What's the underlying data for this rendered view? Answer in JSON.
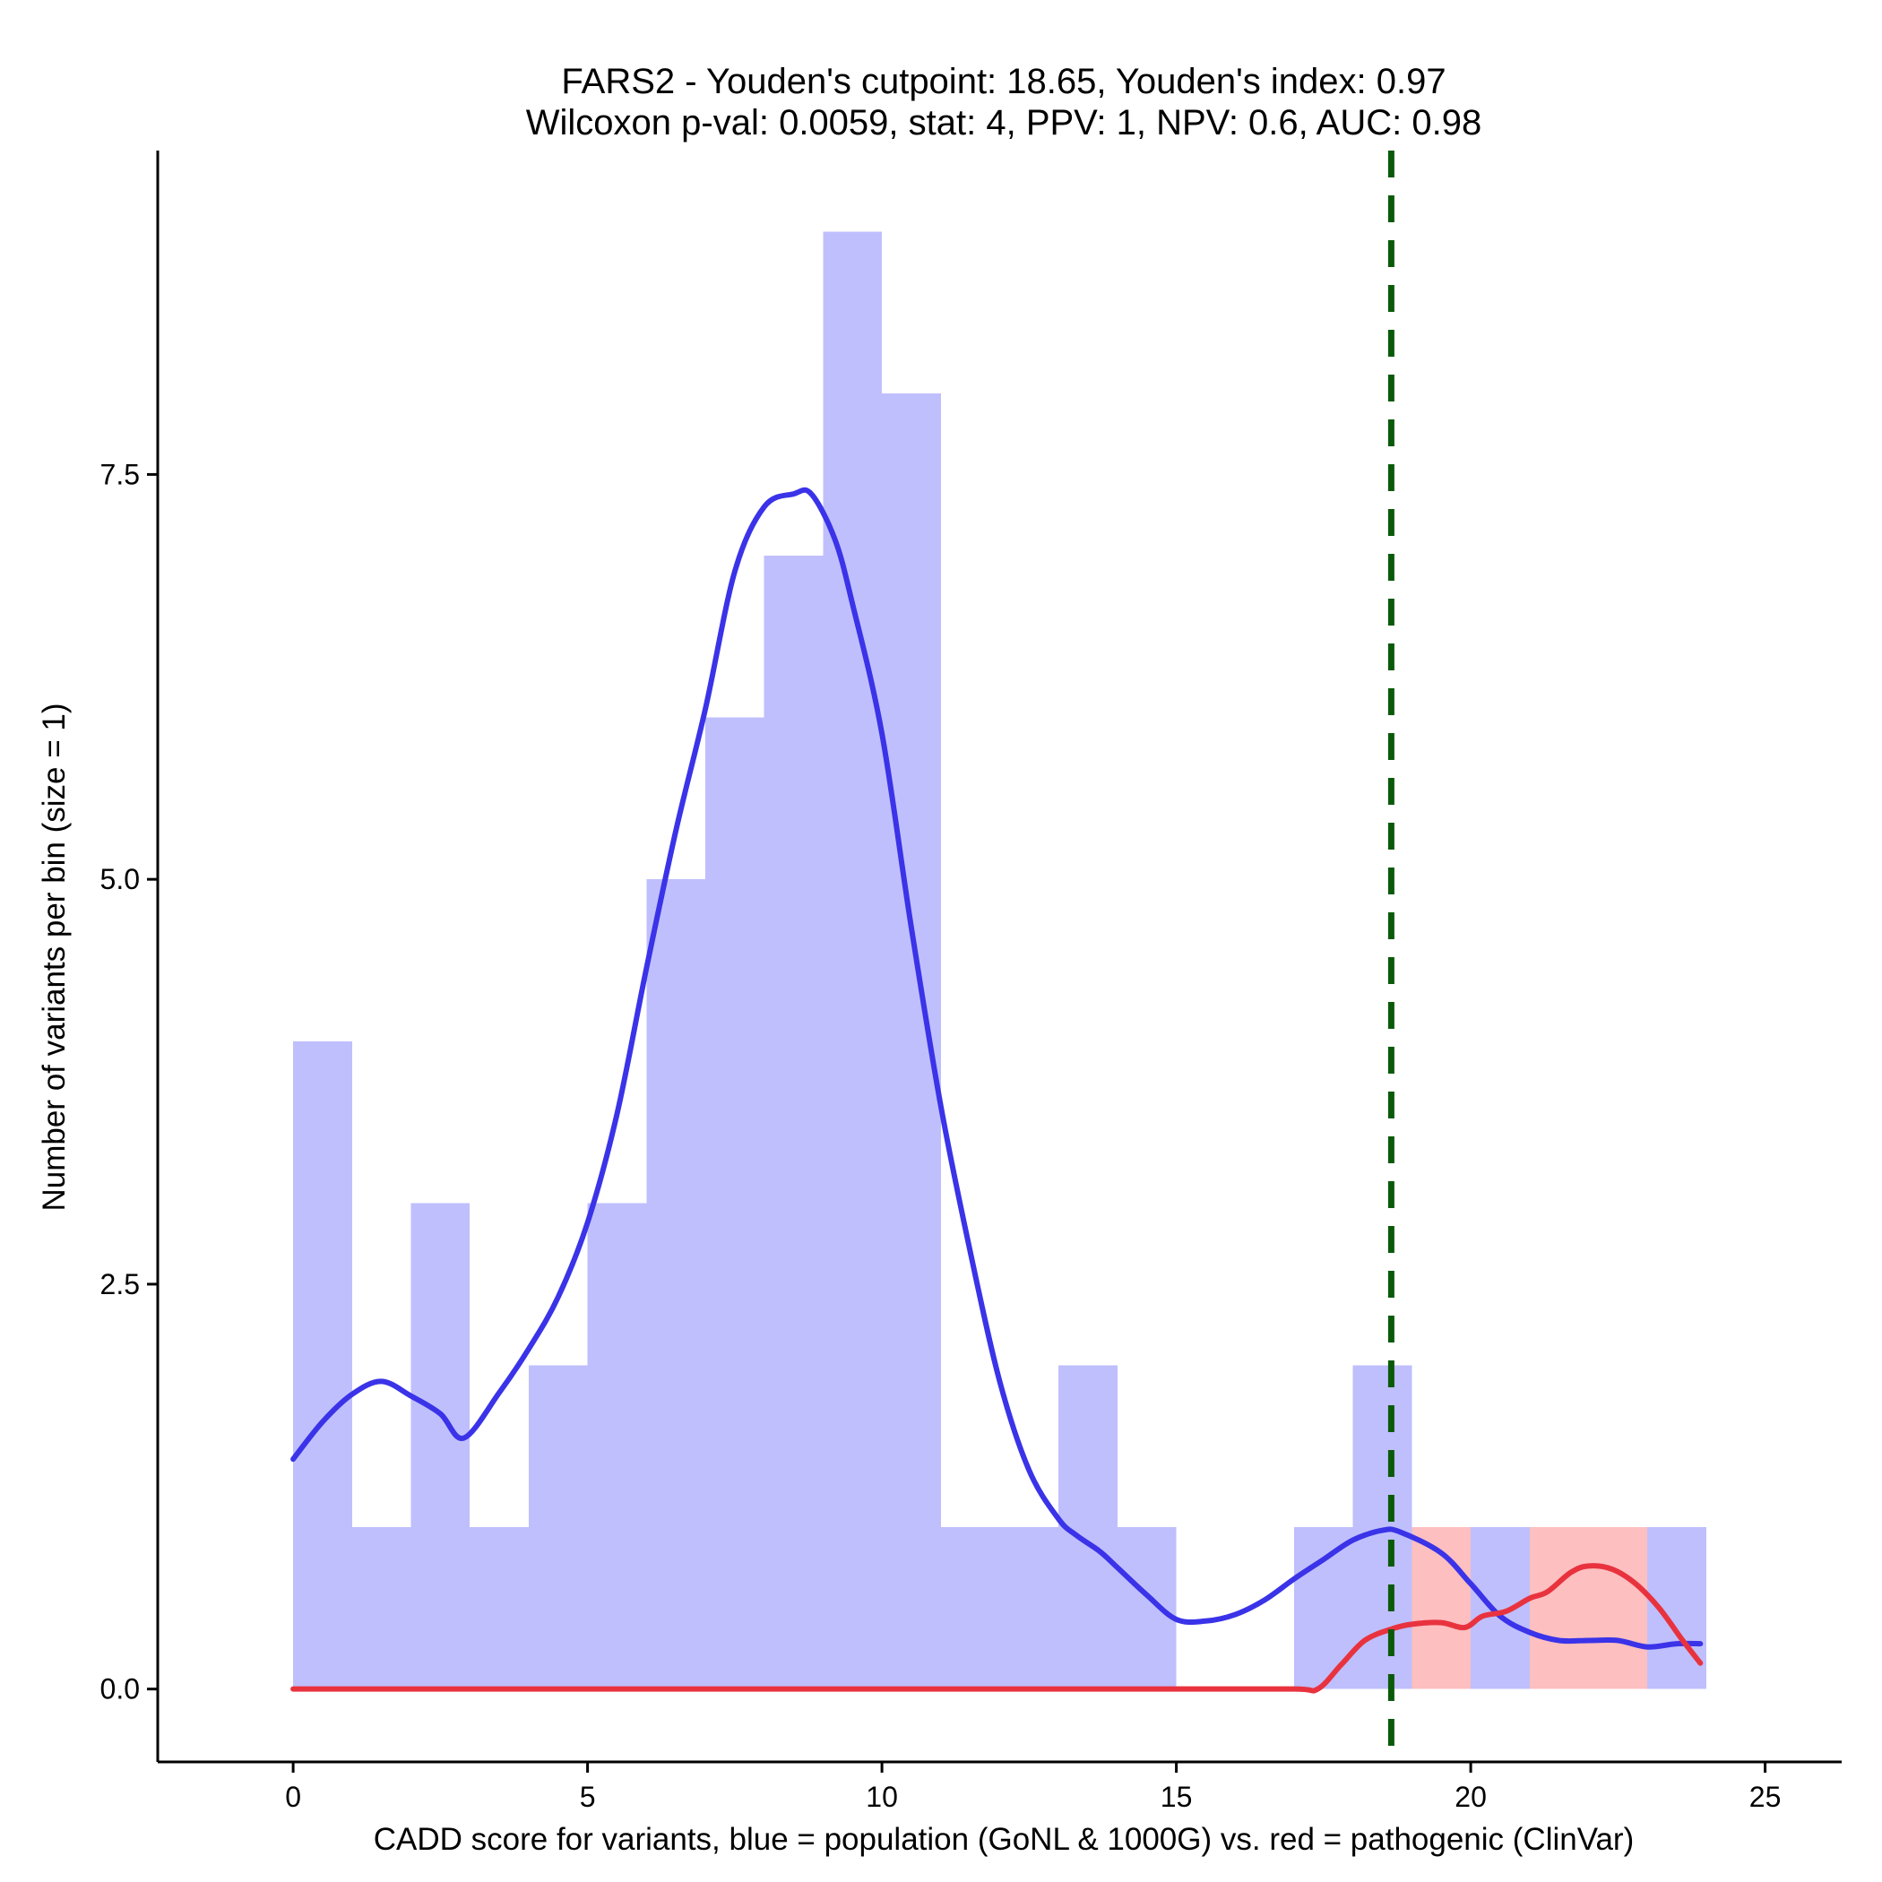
{
  "chart_data": {
    "type": "bar",
    "title": "FARS2 - Youden's cutpoint: 18.65, Youden's index: 0.97",
    "subtitle": "Wilcoxon p-val: 0.0059, stat: 4, PPV: 1, NPV: 0.6, AUC: 0.98",
    "xlabel": "CADD score for variants, blue = population (GoNL & 1000G) vs. red = pathogenic (ClinVar)",
    "ylabel": "Number of variants per bin (size = 1)",
    "xlim": [
      -2.3,
      26.3
    ],
    "ylim": [
      -0.45,
      9.5
    ],
    "xticks": [
      0,
      5,
      10,
      15,
      20,
      25
    ],
    "xtick_labels": [
      "0",
      "5",
      "10",
      "15",
      "20",
      "25"
    ],
    "yticks": [
      0,
      2.5,
      5,
      7.5
    ],
    "ytick_labels": [
      "0.0",
      "2.5",
      "5.0",
      "7.5"
    ],
    "grid": false,
    "legend": "none",
    "bin_width": 1,
    "cutpoint": 18.65,
    "colors": {
      "population_bar": "#bfbffd",
      "pathogenic_bar": "#fdbfc0",
      "population_line": "#3a33e8",
      "pathogenic_line": "#e8333f",
      "cutpoint_line": "#0b5a0b"
    },
    "series": [
      {
        "name": "population (GoNL & 1000G)",
        "bin_starts": [
          0,
          1,
          2,
          3,
          4,
          5,
          6,
          7,
          8,
          9,
          10,
          11,
          12,
          13,
          14,
          15,
          16,
          17,
          18,
          19,
          20,
          21,
          22,
          23
        ],
        "values": [
          4,
          1,
          3,
          1,
          2,
          3,
          5,
          6,
          7,
          9,
          8,
          1,
          1,
          2,
          1,
          0,
          0,
          1,
          2,
          0,
          1,
          0,
          0,
          1
        ]
      },
      {
        "name": "pathogenic (ClinVar)",
        "bin_starts": [
          19,
          21,
          22
        ],
        "values": [
          1,
          1,
          1
        ]
      }
    ],
    "density_curves": [
      {
        "name": "population",
        "x": [
          0,
          0.5,
          1,
          1.5,
          2,
          2.5,
          2.9,
          3.5,
          4,
          4.5,
          5,
          5.5,
          6,
          6.5,
          7,
          7.5,
          8,
          8.5,
          8.8,
          9.2,
          9.5,
          10,
          10.5,
          11,
          11.5,
          12,
          12.5,
          13,
          13.3,
          13.7,
          14,
          14.5,
          15,
          15.5,
          16,
          16.5,
          17,
          17.5,
          18,
          18.5,
          18.8,
          19.5,
          20,
          20.5,
          21,
          21.5,
          22,
          22.5,
          23,
          23.5,
          23.9
        ],
        "y": [
          1.42,
          1.65,
          1.82,
          1.9,
          1.81,
          1.7,
          1.55,
          1.83,
          2.1,
          2.42,
          2.88,
          3.55,
          4.45,
          5.3,
          6.05,
          6.9,
          7.3,
          7.38,
          7.38,
          7.1,
          6.7,
          5.9,
          4.7,
          3.6,
          2.7,
          1.9,
          1.35,
          1.05,
          0.95,
          0.85,
          0.75,
          0.58,
          0.43,
          0.42,
          0.46,
          0.55,
          0.68,
          0.8,
          0.92,
          0.98,
          0.97,
          0.84,
          0.65,
          0.45,
          0.35,
          0.3,
          0.3,
          0.3,
          0.26,
          0.28,
          0.28
        ]
      },
      {
        "name": "pathogenic",
        "x": [
          0,
          5,
          10,
          15,
          17,
          17.4,
          17.8,
          18.2,
          18.65,
          19,
          19.5,
          19.9,
          20.2,
          20.6,
          21,
          21.3,
          21.7,
          22,
          22.4,
          22.8,
          23.2,
          23.6,
          23.9
        ],
        "y": [
          0,
          0,
          0,
          0,
          0,
          0,
          0.15,
          0.3,
          0.37,
          0.4,
          0.41,
          0.38,
          0.45,
          0.48,
          0.56,
          0.6,
          0.72,
          0.76,
          0.74,
          0.65,
          0.5,
          0.3,
          0.16
        ]
      }
    ]
  }
}
